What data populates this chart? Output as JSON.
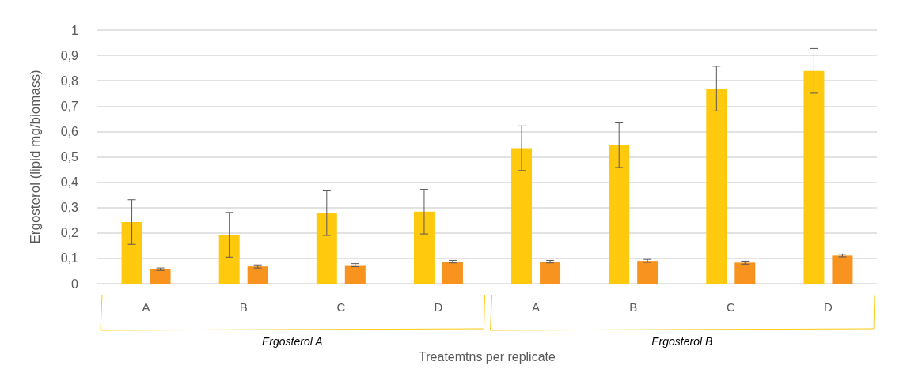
{
  "chart_data": {
    "type": "bar",
    "ylabel": "Ergosterol (lipid mg/biomass)",
    "xlabel": "Treatemtns per replicate",
    "categories": [
      "A",
      "B",
      "C",
      "D",
      "A",
      "B",
      "C",
      "D"
    ],
    "series": [
      {
        "color": "#ffc90e",
        "values": [
          0.243,
          0.193,
          0.278,
          0.284,
          0.534,
          0.546,
          0.769,
          0.839
        ],
        "errors": [
          0.088,
          0.088,
          0.088,
          0.088,
          0.088,
          0.088,
          0.088,
          0.088
        ]
      },
      {
        "color": "#f7931e",
        "values": [
          0.057,
          0.068,
          0.073,
          0.087,
          0.087,
          0.09,
          0.083,
          0.111
        ],
        "errors": [
          0.005,
          0.006,
          0.006,
          0.005,
          0.005,
          0.006,
          0.006,
          0.005
        ]
      }
    ],
    "annotations": [
      "Ergosterol A",
      "Ergosterol B"
    ],
    "ylim": [
      0,
      1
    ],
    "yticks": [
      {
        "value": 0,
        "label": "0"
      },
      {
        "value": 0.1,
        "label": "0,1"
      },
      {
        "value": 0.2,
        "label": "0,2"
      },
      {
        "value": 0.3,
        "label": "0,3"
      },
      {
        "value": 0.4,
        "label": "0,4"
      },
      {
        "value": 0.5,
        "label": "0,5"
      },
      {
        "value": 0.6,
        "label": "0,6"
      },
      {
        "value": 0.7,
        "label": "0,7"
      },
      {
        "value": 0.8,
        "label": "0,8"
      },
      {
        "value": 0.9,
        "label": "0,9"
      },
      {
        "value": 1,
        "label": "1"
      }
    ],
    "grid": "y"
  }
}
